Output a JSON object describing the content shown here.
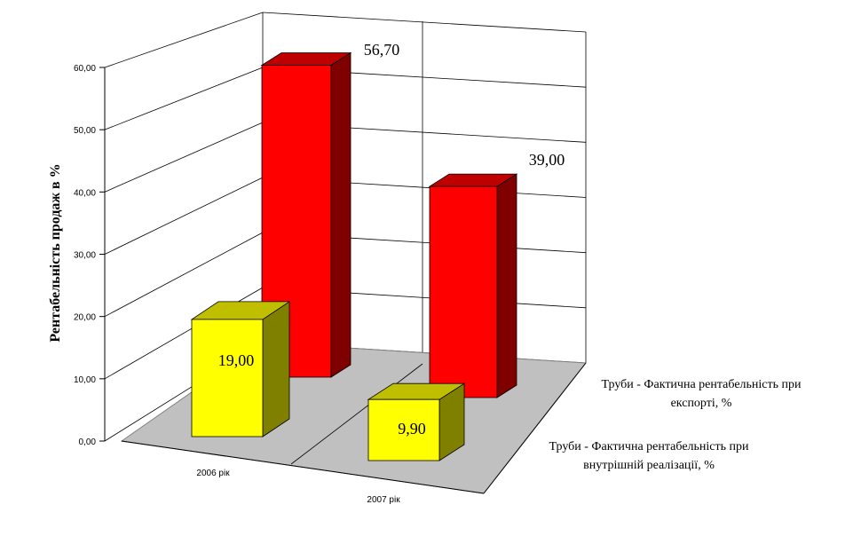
{
  "chart_data": {
    "type": "bar",
    "subtype": "3d-clustered-depth",
    "categories": [
      "2006 рік",
      "2007 рік"
    ],
    "series": [
      {
        "name": "Труби - Фактична рентабельність при внутрішній реалізації, %",
        "name_lines": [
          "Труби - Фактична рентабельність при",
          "внутрішній реалізації, %"
        ],
        "values": [
          19.0,
          9.9
        ],
        "labels": [
          "19,00",
          "9,90"
        ],
        "color": "#ffff00"
      },
      {
        "name": "Труби - Фактична рентабельність при експорті, %",
        "name_lines": [
          "Труби - Фактична рентабельність при",
          "експорті, %"
        ],
        "values": [
          56.7,
          39.0
        ],
        "labels": [
          "56,70",
          "39,00"
        ],
        "color": "#ff0000"
      }
    ],
    "ylabel": "Рентабельність продаж в %",
    "yticks": [
      "0,00",
      "10,00",
      "20,00",
      "30,00",
      "40,00",
      "50,00",
      "60,00"
    ],
    "ylim": [
      0,
      60
    ],
    "grid": true,
    "floor_color": "#c0c0c0"
  }
}
